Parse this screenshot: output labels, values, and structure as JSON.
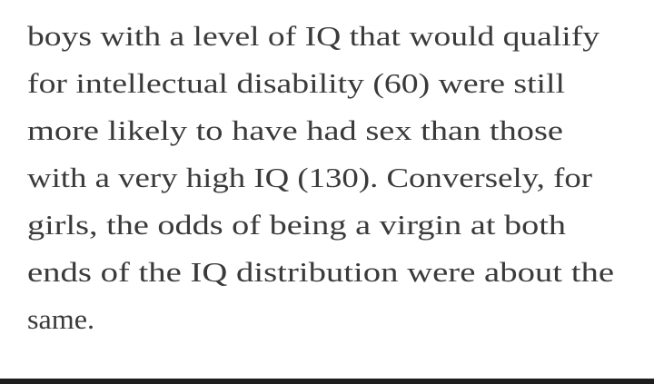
{
  "paragraph": {
    "lines": [
      "boys with a level of IQ that would qualify",
      "for intellectual disability (60) were still",
      "more likely to have had sex than those",
      "with a very high IQ (130). Conversely, for",
      "girls, the odds of being a virgin at both",
      "ends of the IQ distribution were about the",
      "same."
    ]
  }
}
